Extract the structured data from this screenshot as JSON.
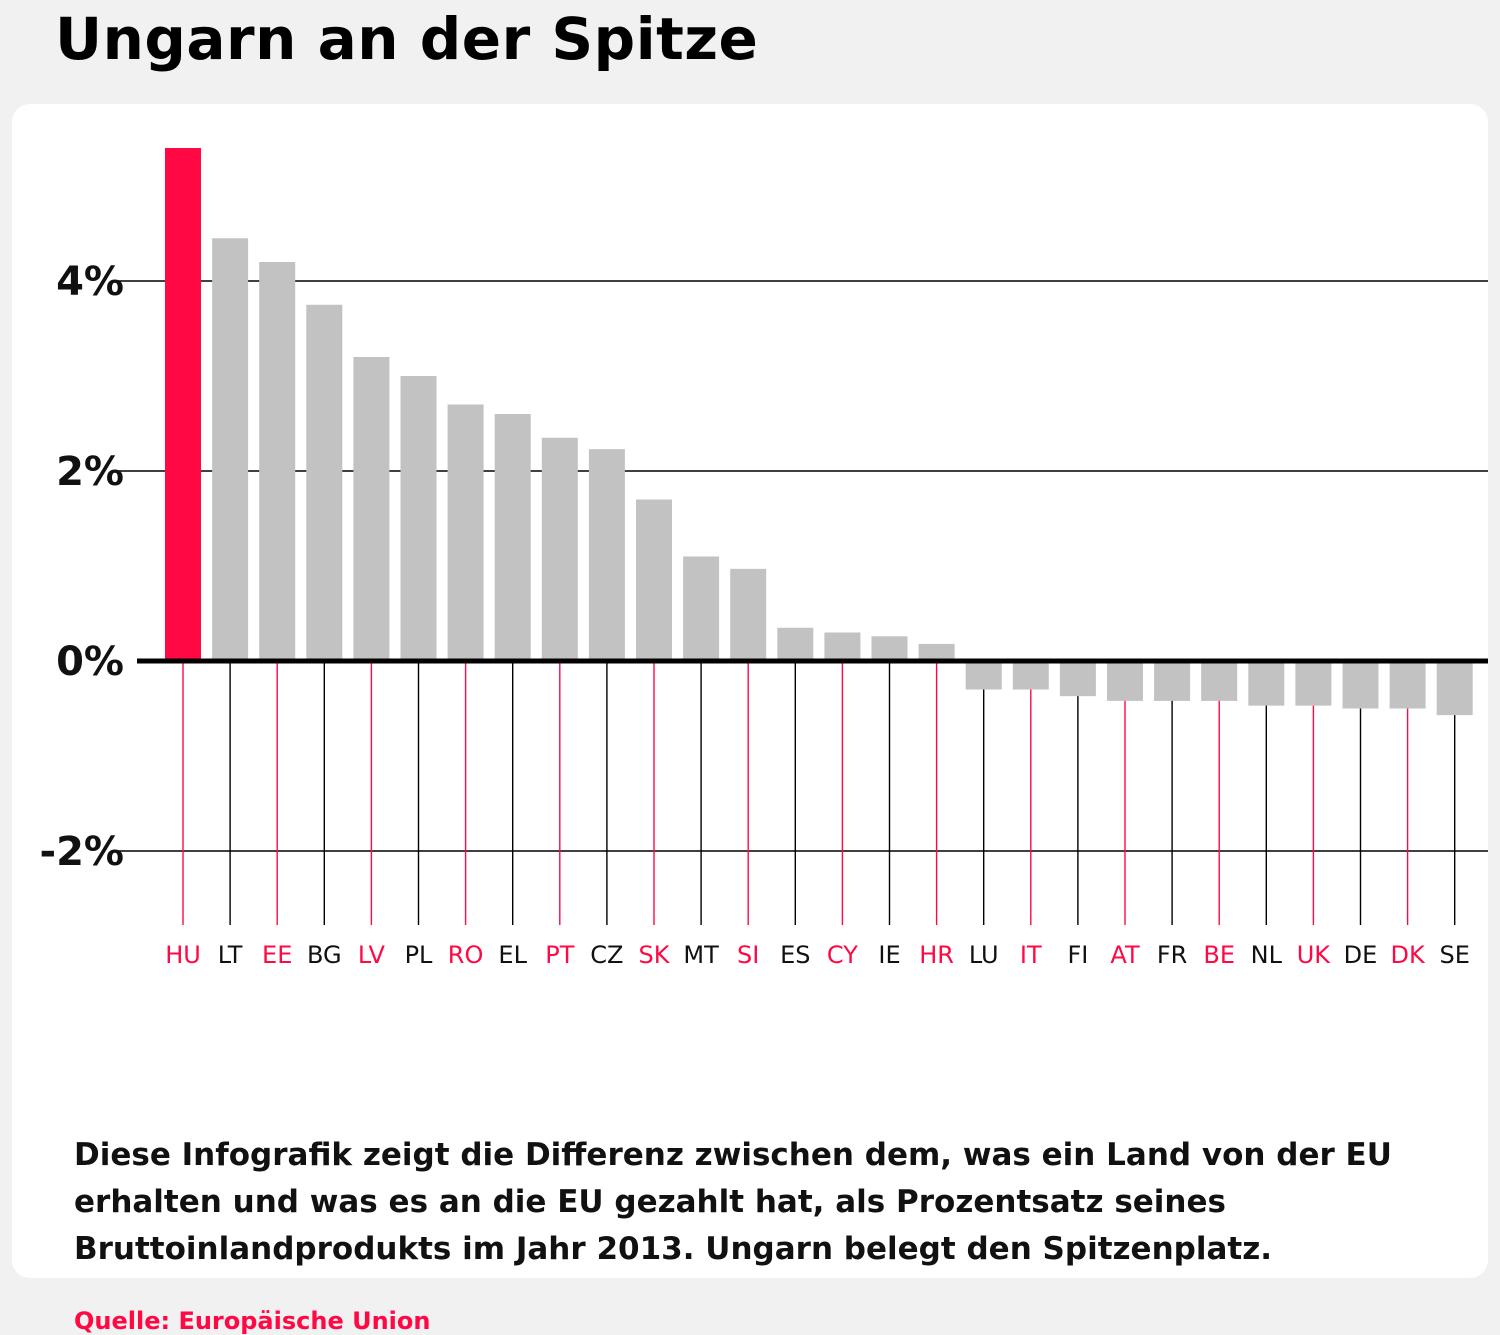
{
  "title": "Ungarn an der Spitze",
  "description": "Diese Infografik zeigt die Differenz zwischen dem, was ein Land von der EU erhalten und was es an die EU gezahlt hat, als Prozentsatz seines Bruttoinlandprodukts im Jahr 2013. Ungarn belegt den Spitzenplatz.",
  "source": "Quelle: Europäische Union",
  "colors": {
    "highlight_bar": "#ff0844",
    "bar": "#c2c2c2",
    "red_label": "#ff0844",
    "black_label": "#111111"
  },
  "chart_data": {
    "type": "bar",
    "title": "Ungarn an der Spitze",
    "xlabel": "",
    "ylabel": "",
    "ylim": [
      -2.7,
      5.5
    ],
    "grid": true,
    "yticks": [
      {
        "value": 4,
        "label": "4%"
      },
      {
        "value": 2,
        "label": "2%"
      },
      {
        "value": 0,
        "label": "0%"
      },
      {
        "value": -2,
        "label": "-2%"
      }
    ],
    "categories": [
      "HU",
      "LT",
      "EE",
      "BG",
      "LV",
      "PL",
      "RO",
      "EL",
      "PT",
      "CZ",
      "SK",
      "MT",
      "SI",
      "ES",
      "CY",
      "IE",
      "HR",
      "LU",
      "IT",
      "FI",
      "AT",
      "FR",
      "BE",
      "NL",
      "UK",
      "DE",
      "DK",
      "SE"
    ],
    "values": [
      5.4,
      4.45,
      4.2,
      3.75,
      3.2,
      3.0,
      2.7,
      2.6,
      2.35,
      2.23,
      1.7,
      1.1,
      0.97,
      0.35,
      0.3,
      0.26,
      0.18,
      -0.3,
      -0.3,
      -0.37,
      -0.42,
      -0.42,
      -0.42,
      -0.47,
      -0.47,
      -0.5,
      -0.5,
      -0.57
    ],
    "highlighted": [
      "HU"
    ],
    "label_colors": [
      "red",
      "black",
      "red",
      "black",
      "red",
      "black",
      "red",
      "black",
      "red",
      "black",
      "red",
      "black",
      "red",
      "black",
      "red",
      "black",
      "red",
      "black",
      "red",
      "black",
      "red",
      "black",
      "red",
      "black",
      "red",
      "black",
      "red",
      "black"
    ]
  }
}
